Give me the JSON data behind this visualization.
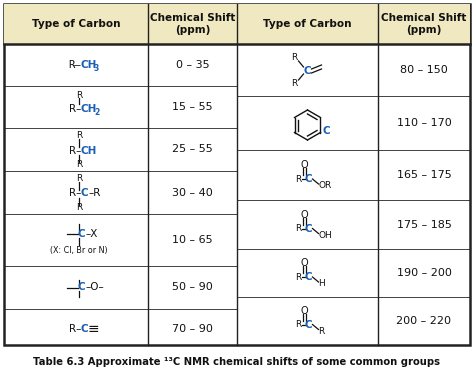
{
  "title": "Table 6.3 Approximate ¹³C NMR chemical shifts of some common groups",
  "header_bg": "#f0e8c0",
  "border_color": "#222222",
  "bg_color": "#ffffff",
  "col_headers": [
    "Type of Carbon",
    "Chemical Shift\n(ppm)",
    "Type of Carbon",
    "Chemical Shift\n(ppm)"
  ],
  "blue": "#1a5fb4",
  "black": "#111111",
  "left_shifts": [
    "0 – 35",
    "15 – 55",
    "25 – 55",
    "30 – 40",
    "10 – 65",
    "50 – 90",
    "70 – 90"
  ],
  "right_shifts": [
    "80 – 150",
    "110 – 170",
    "165 – 175",
    "175 – 185",
    "190 – 200",
    "200 – 220"
  ],
  "fig_w": 4.74,
  "fig_h": 3.78,
  "dpi": 100
}
